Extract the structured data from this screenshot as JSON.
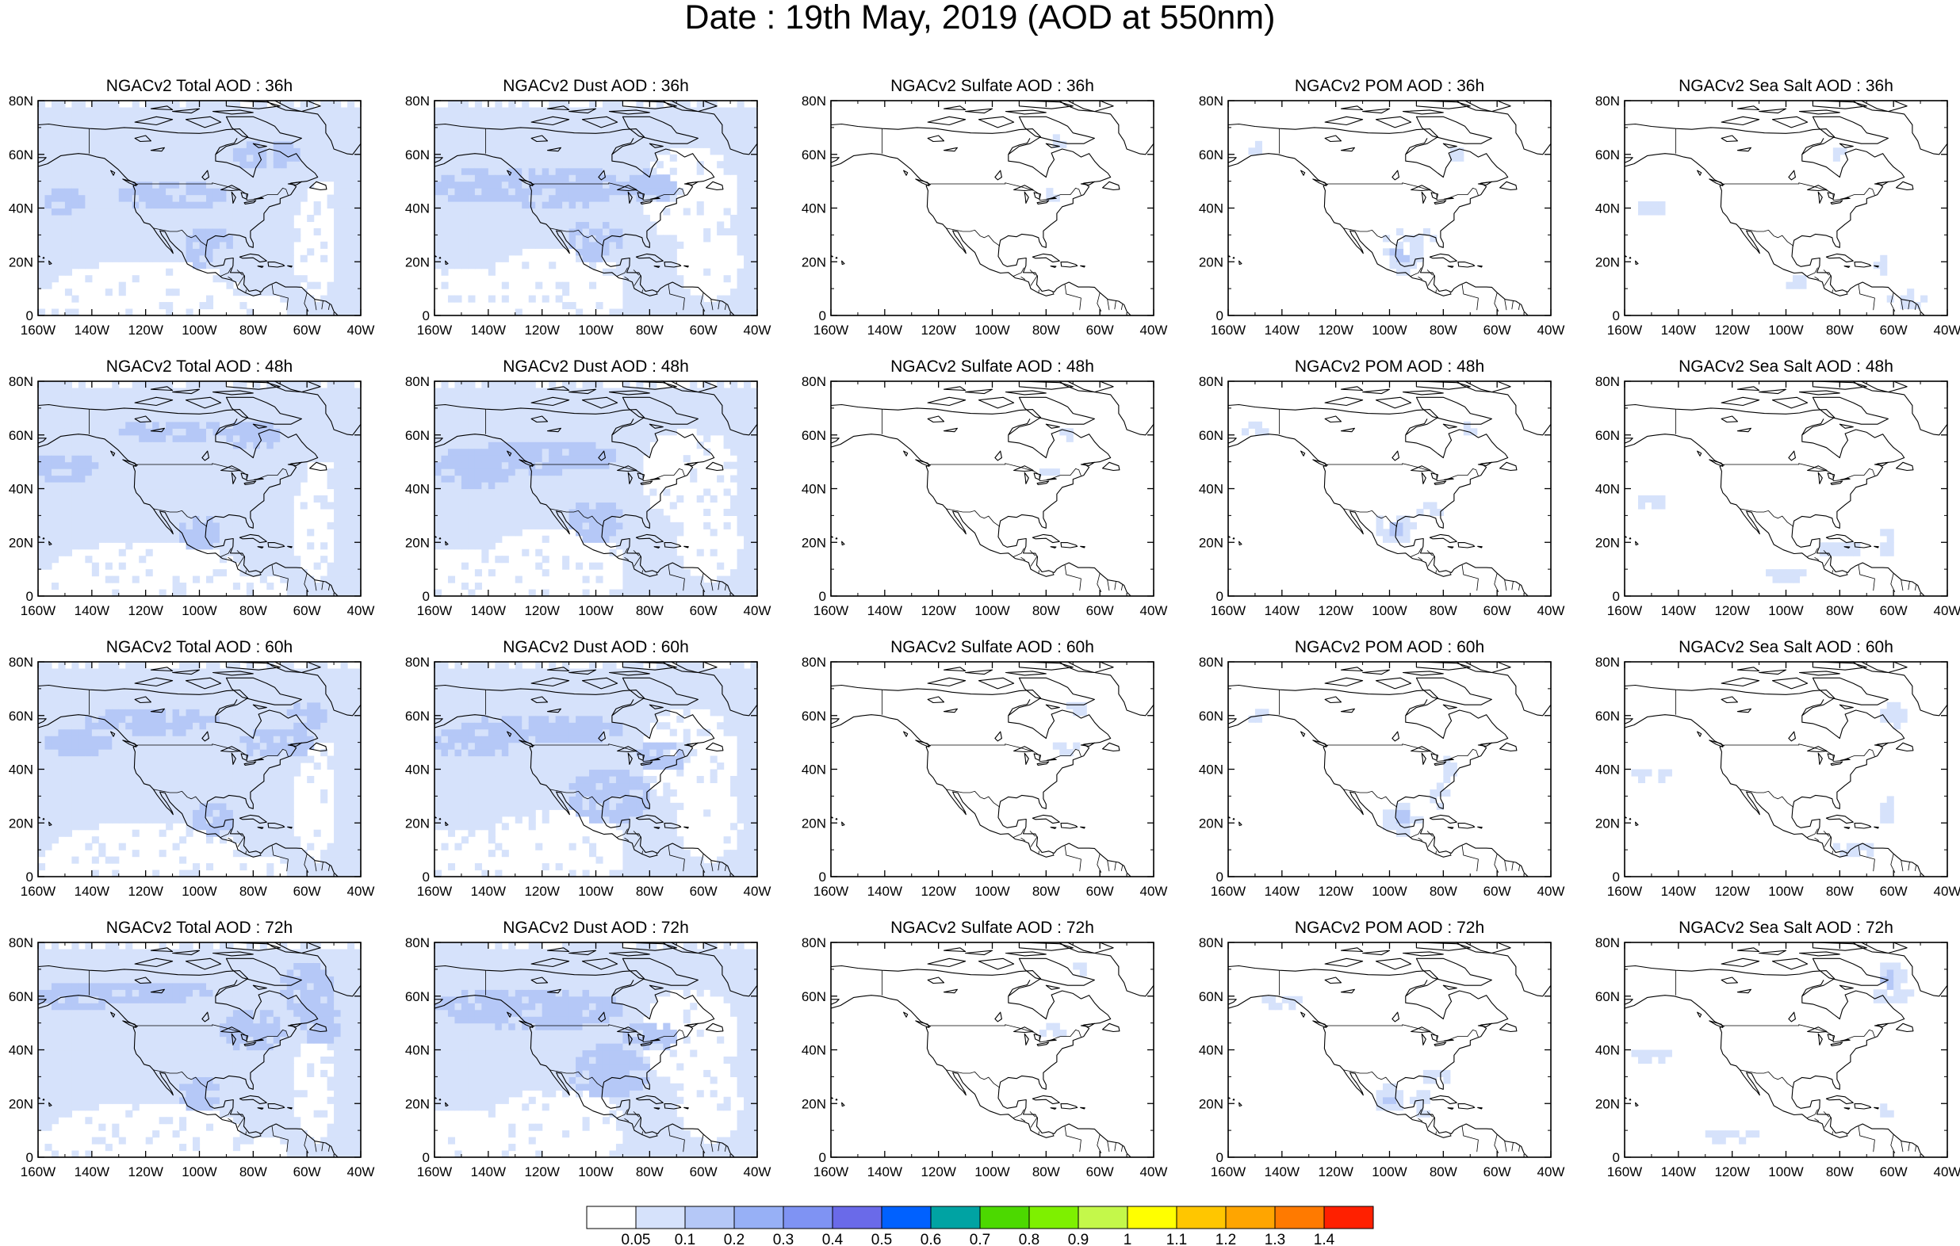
{
  "title": "Date : 19th May, 2019 (AOD at 550nm)",
  "hours": [
    "36h",
    "48h",
    "60h",
    "72h"
  ],
  "panel_titles": [
    [
      "NGACv2 Total AOD : 36h",
      "NGACv2 Dust AOD : 36h",
      "NGACv2 Sulfate AOD : 36h",
      "NGACv2 POM AOD : 36h",
      "NGACv2 Sea Salt AOD : 36h"
    ],
    [
      "NGACv2 Total AOD : 48h",
      "NGACv2 Dust AOD : 48h",
      "NGACv2 Sulfate AOD : 48h",
      "NGACv2 POM AOD : 48h",
      "NGACv2 Sea Salt AOD : 48h"
    ],
    [
      "NGACv2 Total AOD : 60h",
      "NGACv2 Dust AOD : 60h",
      "NGACv2 Sulfate AOD : 60h",
      "NGACv2 POM AOD : 60h",
      "NGACv2 Sea Salt AOD : 60h"
    ],
    [
      "NGACv2 Total AOD : 72h",
      "NGACv2 Dust AOD : 72h",
      "NGACv2 Sulfate AOD : 72h",
      "NGACv2 POM AOD : 72h",
      "NGACv2 Sea Salt  AOD : 72h"
    ]
  ],
  "lat_labels": [
    "80N",
    "60N",
    "40N",
    "20N",
    "0"
  ],
  "lon_labels": [
    "160W",
    "140W",
    "120W",
    "100W",
    "80W",
    "60W",
    "40W"
  ],
  "colorbar": {
    "colors": [
      "#ffffff",
      "#d6e2fb",
      "#b5c8f7",
      "#97b0f6",
      "#7f93f3",
      "#6a6ae9",
      "#0061ff",
      "#00a3a3",
      "#4cd900",
      "#7ef000",
      "#c4f84a",
      "#ffff00",
      "#ffc600",
      "#ffa500",
      "#ff7a00",
      "#ff2000"
    ],
    "labels": [
      "0.05",
      "0.1",
      "0.2",
      "0.3",
      "0.4",
      "0.5",
      "0.6",
      "0.7",
      "0.8",
      "0.9",
      "1",
      "1.1",
      "1.2",
      "1.3",
      "1.4"
    ]
  },
  "fields": {
    "total": {
      "base": "#d6e2fb",
      "patch": "#b5c8f7"
    },
    "dust": {
      "base": "#d6e2fb",
      "patch": "#b5c8f7"
    },
    "sulfate": {
      "base": "#d6e2fb"
    },
    "pom": {
      "base": "#d6e2fb",
      "patch": "#b5c8f7"
    },
    "seasalt": {
      "base": "#d6e2fb",
      "patch": "#b5c8f7"
    }
  }
}
